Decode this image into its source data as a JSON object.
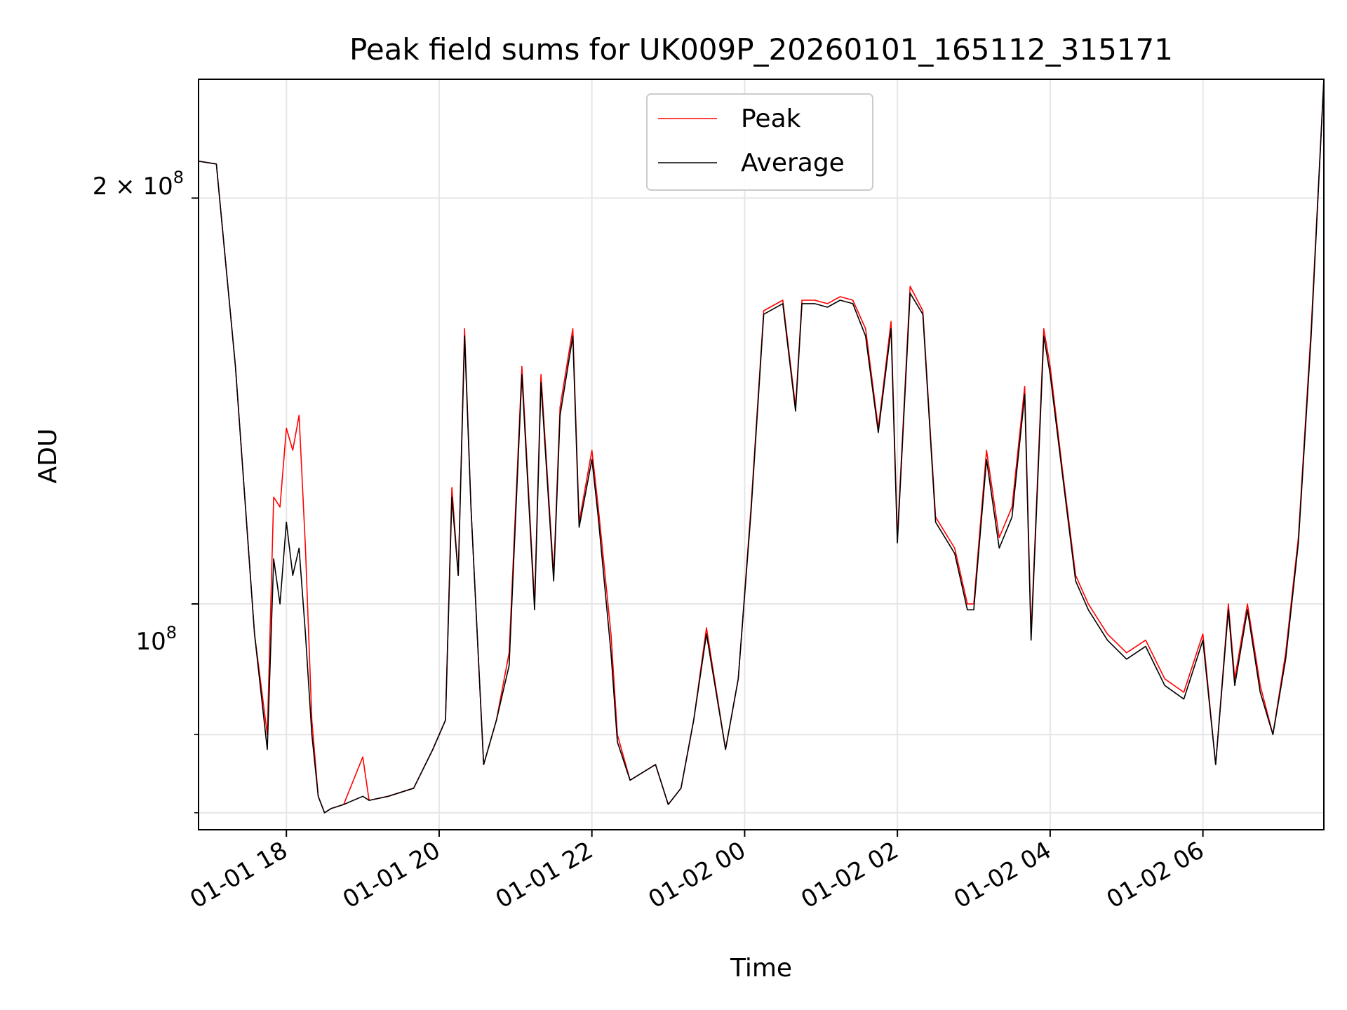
{
  "chart_data": {
    "type": "line",
    "title": "Peak field sums for UK009P_20260101_165112_315171",
    "xlabel": "Time",
    "ylabel": "ADU",
    "yscale": "log",
    "ylim": [
      68000000,
      245000000
    ],
    "xlim_hours_label": "x axis spans 2026-01-01 16:51 to 2026-01-02 07:35",
    "grid": true,
    "legend": "upper center",
    "x_ticks": [
      "01-01 18",
      "01-01 20",
      "01-01 22",
      "01-02 00",
      "01-02 02",
      "01-02 04",
      "01-02 06"
    ],
    "y_tick_labels": {
      "major_1": "10",
      "major_1_exp": "8",
      "major_2": "2 × 10",
      "major_2_exp": "8"
    },
    "y_minor_ticks": [
      70000000,
      80000000
    ],
    "colors": {
      "Peak": "#ff0000",
      "Average": "#000000"
    },
    "series": [
      {
        "name": "Peak",
        "x": [
          "2026-01-01 16:51",
          "2026-01-01 17:05",
          "2026-01-01 17:20",
          "2026-01-01 17:35",
          "2026-01-01 17:45",
          "2026-01-01 17:50",
          "2026-01-01 17:55",
          "2026-01-01 18:00",
          "2026-01-01 18:05",
          "2026-01-01 18:10",
          "2026-01-01 18:15",
          "2026-01-01 18:20",
          "2026-01-01 18:25",
          "2026-01-01 18:30",
          "2026-01-01 18:35",
          "2026-01-01 18:45",
          "2026-01-01 19:00",
          "2026-01-01 19:05",
          "2026-01-01 19:20",
          "2026-01-01 19:40",
          "2026-01-01 19:55",
          "2026-01-01 20:05",
          "2026-01-01 20:10",
          "2026-01-01 20:15",
          "2026-01-01 20:20",
          "2026-01-01 20:25",
          "2026-01-01 20:35",
          "2026-01-01 20:45",
          "2026-01-01 20:55",
          "2026-01-01 21:05",
          "2026-01-01 21:15",
          "2026-01-01 21:20",
          "2026-01-01 21:30",
          "2026-01-01 21:35",
          "2026-01-01 21:45",
          "2026-01-01 21:50",
          "2026-01-01 22:00",
          "2026-01-01 22:05",
          "2026-01-01 22:15",
          "2026-01-01 22:20",
          "2026-01-01 22:30",
          "2026-01-01 22:40",
          "2026-01-01 22:50",
          "2026-01-01 23:00",
          "2026-01-01 23:10",
          "2026-01-01 23:20",
          "2026-01-01 23:30",
          "2026-01-01 23:45",
          "2026-01-01 23:55",
          "2026-01-02 00:05",
          "2026-01-02 00:15",
          "2026-01-02 00:30",
          "2026-01-02 00:40",
          "2026-01-02 00:45",
          "2026-01-02 00:55",
          "2026-01-02 01:05",
          "2026-01-02 01:15",
          "2026-01-02 01:25",
          "2026-01-02 01:35",
          "2026-01-02 01:45",
          "2026-01-02 01:55",
          "2026-01-02 02:00",
          "2026-01-02 02:10",
          "2026-01-02 02:20",
          "2026-01-02 02:30",
          "2026-01-02 02:45",
          "2026-01-02 02:55",
          "2026-01-02 03:00",
          "2026-01-02 03:10",
          "2026-01-02 03:20",
          "2026-01-02 03:30",
          "2026-01-02 03:40",
          "2026-01-02 03:45",
          "2026-01-02 03:55",
          "2026-01-02 04:00",
          "2026-01-02 04:10",
          "2026-01-02 04:20",
          "2026-01-02 04:30",
          "2026-01-02 04:45",
          "2026-01-02 05:00",
          "2026-01-02 05:15",
          "2026-01-02 05:30",
          "2026-01-02 05:45",
          "2026-01-02 06:00",
          "2026-01-02 06:10",
          "2026-01-02 06:20",
          "2026-01-02 06:25",
          "2026-01-02 06:35",
          "2026-01-02 06:45",
          "2026-01-02 06:55",
          "2026-01-02 07:05",
          "2026-01-02 07:15",
          "2026-01-02 07:25",
          "2026-01-02 07:35"
        ],
        "values": [
          213000000,
          212000000,
          150000000,
          95000000,
          80000000,
          120000000,
          118000000,
          135000000,
          130000000,
          138000000,
          110000000,
          82000000,
          72000000,
          70000000,
          70500000,
          71000000,
          77000000,
          71500000,
          72000000,
          73000000,
          78000000,
          82000000,
          122000000,
          105000000,
          160000000,
          118000000,
          76000000,
          82000000,
          92000000,
          150000000,
          100000000,
          148000000,
          105000000,
          140000000,
          160000000,
          115000000,
          130000000,
          118000000,
          95000000,
          80000000,
          74000000,
          75000000,
          76000000,
          71000000,
          73000000,
          82000000,
          96000000,
          78000000,
          88000000,
          118000000,
          165000000,
          168000000,
          140000000,
          168000000,
          168000000,
          167000000,
          169000000,
          168000000,
          160000000,
          135000000,
          162000000,
          112000000,
          172000000,
          165000000,
          116000000,
          110000000,
          100000000,
          100000000,
          130000000,
          112000000,
          118000000,
          145000000,
          95000000,
          160000000,
          150000000,
          125000000,
          105000000,
          100000000,
          95000000,
          92000000,
          94000000,
          88000000,
          86000000,
          95000000,
          76000000,
          100000000,
          88000000,
          100000000,
          87000000,
          80000000,
          92000000,
          112000000,
          160000000,
          245000000
        ]
      },
      {
        "name": "Average",
        "x": [
          "2026-01-01 16:51",
          "2026-01-01 17:05",
          "2026-01-01 17:20",
          "2026-01-01 17:35",
          "2026-01-01 17:45",
          "2026-01-01 17:50",
          "2026-01-01 17:55",
          "2026-01-01 18:00",
          "2026-01-01 18:05",
          "2026-01-01 18:10",
          "2026-01-01 18:15",
          "2026-01-01 18:20",
          "2026-01-01 18:25",
          "2026-01-01 18:30",
          "2026-01-01 18:35",
          "2026-01-01 18:45",
          "2026-01-01 19:00",
          "2026-01-01 19:05",
          "2026-01-01 19:20",
          "2026-01-01 19:40",
          "2026-01-01 19:55",
          "2026-01-01 20:05",
          "2026-01-01 20:10",
          "2026-01-01 20:15",
          "2026-01-01 20:20",
          "2026-01-01 20:25",
          "2026-01-01 20:35",
          "2026-01-01 20:45",
          "2026-01-01 20:55",
          "2026-01-01 21:05",
          "2026-01-01 21:15",
          "2026-01-01 21:20",
          "2026-01-01 21:30",
          "2026-01-01 21:35",
          "2026-01-01 21:45",
          "2026-01-01 21:50",
          "2026-01-01 22:00",
          "2026-01-01 22:05",
          "2026-01-01 22:15",
          "2026-01-01 22:20",
          "2026-01-01 22:30",
          "2026-01-01 22:40",
          "2026-01-01 22:50",
          "2026-01-01 23:00",
          "2026-01-01 23:10",
          "2026-01-01 23:20",
          "2026-01-01 23:30",
          "2026-01-01 23:45",
          "2026-01-01 23:55",
          "2026-01-02 00:05",
          "2026-01-02 00:15",
          "2026-01-02 00:30",
          "2026-01-02 00:40",
          "2026-01-02 00:45",
          "2026-01-02 00:55",
          "2026-01-02 01:05",
          "2026-01-02 01:15",
          "2026-01-02 01:25",
          "2026-01-02 01:35",
          "2026-01-02 01:45",
          "2026-01-02 01:55",
          "2026-01-02 02:00",
          "2026-01-02 02:10",
          "2026-01-02 02:20",
          "2026-01-02 02:30",
          "2026-01-02 02:45",
          "2026-01-02 02:55",
          "2026-01-02 03:00",
          "2026-01-02 03:10",
          "2026-01-02 03:20",
          "2026-01-02 03:30",
          "2026-01-02 03:40",
          "2026-01-02 03:45",
          "2026-01-02 03:55",
          "2026-01-02 04:00",
          "2026-01-02 04:10",
          "2026-01-02 04:20",
          "2026-01-02 04:30",
          "2026-01-02 04:45",
          "2026-01-02 05:00",
          "2026-01-02 05:15",
          "2026-01-02 05:30",
          "2026-01-02 05:45",
          "2026-01-02 06:00",
          "2026-01-02 06:10",
          "2026-01-02 06:20",
          "2026-01-02 06:25",
          "2026-01-02 06:35",
          "2026-01-02 06:45",
          "2026-01-02 06:55",
          "2026-01-02 07:05",
          "2026-01-02 07:15",
          "2026-01-02 07:25",
          "2026-01-02 07:35"
        ],
        "values": [
          213000000,
          212000000,
          150000000,
          95000000,
          78000000,
          108000000,
          100000000,
          115000000,
          105000000,
          110000000,
          95000000,
          80000000,
          72000000,
          70000000,
          70500000,
          71000000,
          72000000,
          71500000,
          72000000,
          73000000,
          78000000,
          82000000,
          120000000,
          105000000,
          158000000,
          118000000,
          76000000,
          82000000,
          90000000,
          148000000,
          99000000,
          146000000,
          104000000,
          138000000,
          158000000,
          114000000,
          128000000,
          116000000,
          92000000,
          79000000,
          74000000,
          75000000,
          76000000,
          71000000,
          73000000,
          82000000,
          95000000,
          78000000,
          88000000,
          117000000,
          164000000,
          167000000,
          139000000,
          167000000,
          167000000,
          166000000,
          168000000,
          167000000,
          158000000,
          134000000,
          160000000,
          111000000,
          170000000,
          164000000,
          115000000,
          109000000,
          99000000,
          99000000,
          128000000,
          110000000,
          116000000,
          143000000,
          94000000,
          158000000,
          148000000,
          124000000,
          104000000,
          99000000,
          94000000,
          91000000,
          93000000,
          87000000,
          85000000,
          94000000,
          76000000,
          99000000,
          87000000,
          99000000,
          86000000,
          80000000,
          91000000,
          111000000,
          158000000,
          245000000
        ]
      }
    ]
  }
}
